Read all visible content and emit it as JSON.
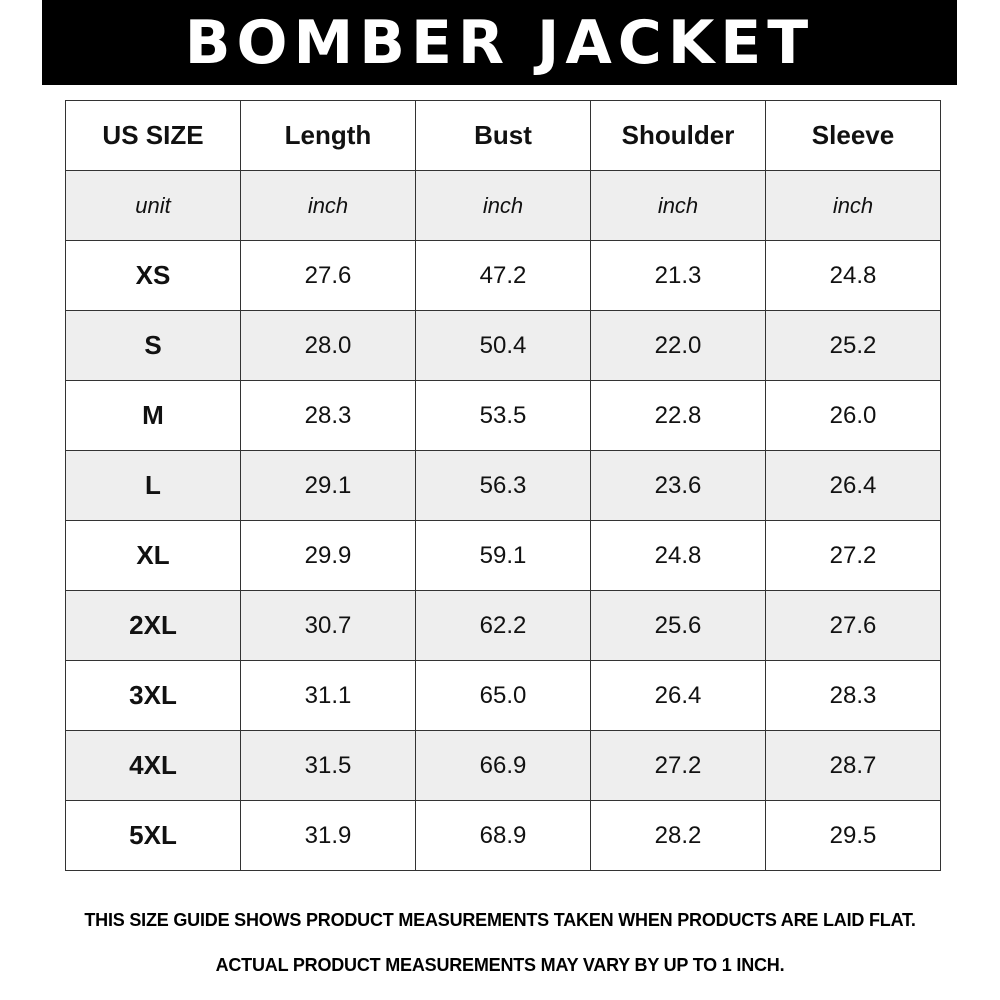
{
  "title": "BOMBER JACKET",
  "table": {
    "headers": [
      "US SIZE",
      "Length",
      "Bust",
      "Shoulder",
      "Sleeve"
    ],
    "units": [
      "unit",
      "inch",
      "inch",
      "inch",
      "inch"
    ],
    "rows": [
      [
        "XS",
        "27.6",
        "47.2",
        "21.3",
        "24.8"
      ],
      [
        "S",
        "28.0",
        "50.4",
        "22.0",
        "25.2"
      ],
      [
        "M",
        "28.3",
        "53.5",
        "22.8",
        "26.0"
      ],
      [
        "L",
        "29.1",
        "56.3",
        "23.6",
        "26.4"
      ],
      [
        "XL",
        "29.9",
        "59.1",
        "24.8",
        "27.2"
      ],
      [
        "2XL",
        "30.7",
        "62.2",
        "25.6",
        "27.6"
      ],
      [
        "3XL",
        "31.1",
        "65.0",
        "26.4",
        "28.3"
      ],
      [
        "4XL",
        "31.5",
        "66.9",
        "27.2",
        "28.7"
      ],
      [
        "5XL",
        "31.9",
        "68.9",
        "28.2",
        "29.5"
      ]
    ]
  },
  "footer": {
    "line1": "THIS SIZE GUIDE SHOWS PRODUCT MEASUREMENTS TAKEN WHEN PRODUCTS ARE LAID FLAT.",
    "line2": "ACTUAL PRODUCT MEASUREMENTS MAY VARY BY UP TO 1 INCH."
  }
}
